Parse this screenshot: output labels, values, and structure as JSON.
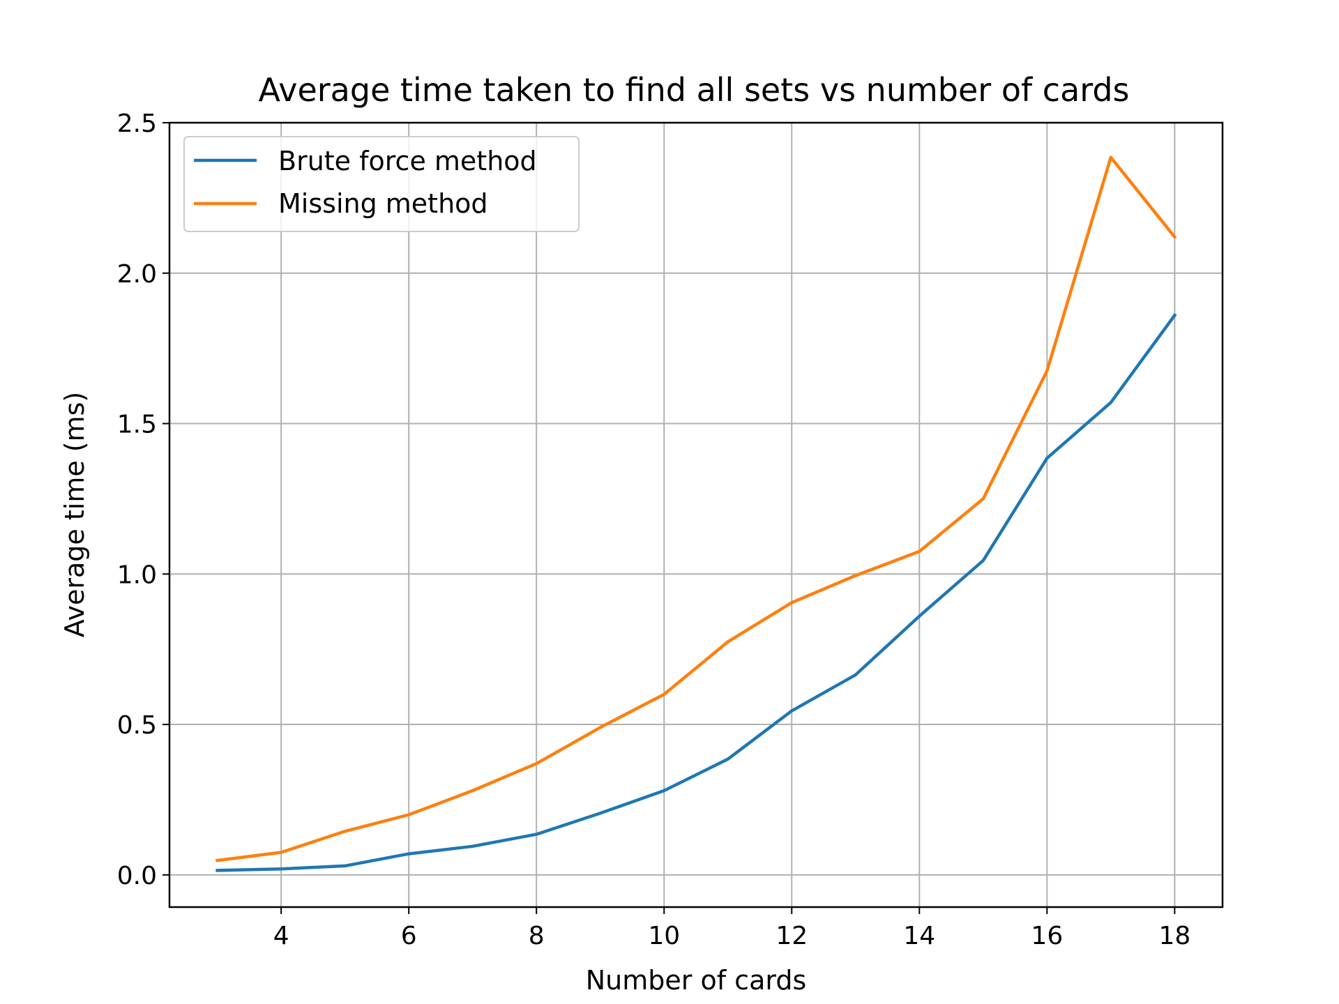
{
  "chart_data": {
    "type": "line",
    "title": "Average time taken to find all sets vs number of cards",
    "xlabel": "Number of cards",
    "ylabel": "Average time (ms)",
    "x": [
      3,
      4,
      5,
      6,
      7,
      8,
      9,
      10,
      11,
      12,
      13,
      14,
      15,
      16,
      17,
      18
    ],
    "xlim": [
      2.25,
      18.75
    ],
    "ylim": [
      -0.107,
      2.5
    ],
    "xticks": [
      4,
      6,
      8,
      10,
      12,
      14,
      16,
      18
    ],
    "xtick_labels": [
      "4",
      "6",
      "8",
      "10",
      "12",
      "14",
      "16",
      "18"
    ],
    "yticks": [
      0.0,
      0.5,
      1.0,
      1.5,
      2.0,
      2.5
    ],
    "ytick_labels": [
      "0.0",
      "0.5",
      "1.0",
      "1.5",
      "2.0",
      "2.5"
    ],
    "grid": true,
    "legend_position": "upper-left",
    "series": [
      {
        "name": "Brute force method",
        "color": "#1f77b4",
        "values": [
          0.015,
          0.02,
          0.03,
          0.07,
          0.095,
          0.135,
          0.205,
          0.28,
          0.385,
          0.545,
          0.665,
          0.86,
          1.045,
          1.385,
          1.57,
          1.86
        ]
      },
      {
        "name": "Missing method",
        "color": "#ff7f0e",
        "values": [
          0.048,
          0.075,
          0.145,
          0.2,
          0.28,
          0.37,
          0.49,
          0.6,
          0.775,
          0.905,
          0.995,
          1.075,
          1.25,
          1.675,
          2.385,
          2.12
        ]
      }
    ]
  }
}
